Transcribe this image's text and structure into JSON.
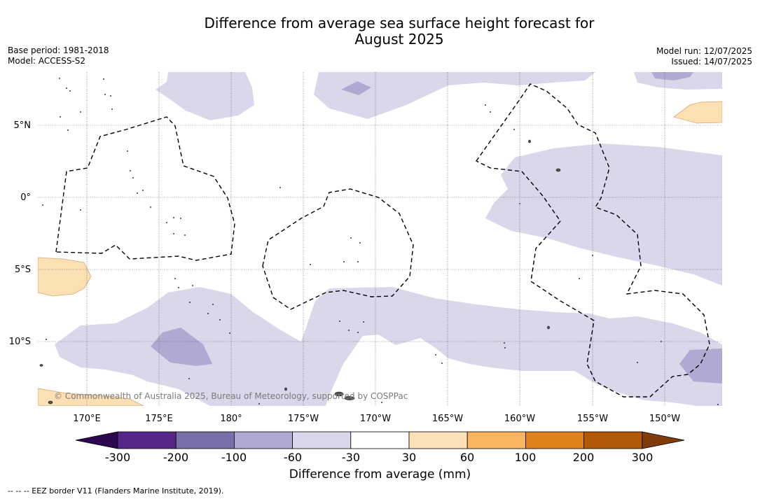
{
  "header": {
    "title_line1": "Difference from average sea surface height forecast for",
    "title_line2": "August 2025",
    "base_period": "Base period: 1981-2018",
    "model": "Model: ACCESS-S2",
    "model_run": "Model run: 12/07/2025",
    "issued": "Issued: 14/07/2025"
  },
  "map": {
    "lon_labels": [
      "170°E",
      "175°E",
      "180°",
      "175°W",
      "170°W",
      "165°W",
      "160°W",
      "155°W",
      "150°W"
    ],
    "lat_labels": [
      "5°N",
      "0°",
      "5°S",
      "10°S"
    ],
    "copyright": "© Commonwealth of Australia 2025, Bureau of Meteorology, supported by COSPPac",
    "colors": {
      "ocean": "#ffffff",
      "band_minus30_minus60": "#d8d8ea",
      "band_minus60_minus100": "#b0aad2",
      "band_30_60": "#fddfb4",
      "land": "#555555",
      "eez_border": "#000000"
    }
  },
  "colorbar": {
    "title": "Difference from average (mm)",
    "ticks": [
      "-300",
      "-200",
      "-100",
      "-60",
      "-30",
      "30",
      "60",
      "100",
      "200",
      "300"
    ],
    "colors": [
      "#2d0850",
      "#562788",
      "#7b6faa",
      "#aea8d2",
      "#d8d8ea",
      "#ffffff",
      "#fde1b6",
      "#f8b45f",
      "#e0821a",
      "#b15908",
      "#7f3b08"
    ]
  },
  "footnote": "--  --  -- EEZ border V11 (Flanders Marine Institute, 2019)."
}
